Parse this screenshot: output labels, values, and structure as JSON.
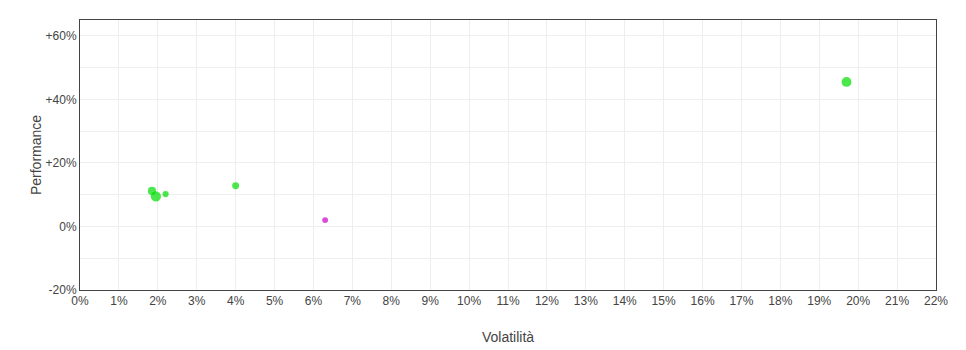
{
  "chart_data": {
    "type": "scatter",
    "xlabel": "Volatilità",
    "ylabel": "Performance",
    "x": [
      0.0195,
      0.0185,
      0.022,
      0.04,
      0.063,
      0.197
    ],
    "values": [
      0.095,
      0.112,
      0.102,
      0.128,
      0.02,
      0.455
    ],
    "sizes": [
      55,
      35,
      20,
      25,
      18,
      50
    ],
    "colors": [
      "#00dd00",
      "#00dd00",
      "#00dd00",
      "#00dd00",
      "#cc00cc",
      "#00dd00"
    ],
    "xlim": [
      0.0,
      0.22
    ],
    "ylim": [
      -0.2,
      0.65
    ],
    "xticks": [
      {
        "value": 0.0,
        "label": "0%"
      },
      {
        "value": 0.01,
        "label": "1%"
      },
      {
        "value": 0.02,
        "label": "2%"
      },
      {
        "value": 0.03,
        "label": "3%"
      },
      {
        "value": 0.04,
        "label": "4%"
      },
      {
        "value": 0.05,
        "label": "5%"
      },
      {
        "value": 0.06,
        "label": "6%"
      },
      {
        "value": 0.07,
        "label": "7%"
      },
      {
        "value": 0.08,
        "label": "8%"
      },
      {
        "value": 0.09,
        "label": "9%"
      },
      {
        "value": 0.1,
        "label": "10%"
      },
      {
        "value": 0.11,
        "label": "11%"
      },
      {
        "value": 0.12,
        "label": "12%"
      },
      {
        "value": 0.13,
        "label": "13%"
      },
      {
        "value": 0.14,
        "label": "14%"
      },
      {
        "value": 0.15,
        "label": "15%"
      },
      {
        "value": 0.16,
        "label": "16%"
      },
      {
        "value": 0.17,
        "label": "17%"
      },
      {
        "value": 0.18,
        "label": "18%"
      },
      {
        "value": 0.19,
        "label": "19%"
      },
      {
        "value": 0.2,
        "label": "20%"
      },
      {
        "value": 0.21,
        "label": "21%"
      },
      {
        "value": 0.22,
        "label": "22%"
      }
    ],
    "yticks": [
      {
        "value": -0.2,
        "label": "-20%"
      },
      {
        "value": -0.1,
        "label": null
      },
      {
        "value": 0.0,
        "label": "0%"
      },
      {
        "value": 0.1,
        "label": null
      },
      {
        "value": 0.2,
        "label": "+20%"
      },
      {
        "value": 0.3,
        "label": null
      },
      {
        "value": 0.4,
        "label": "+40%"
      },
      {
        "value": 0.5,
        "label": null
      },
      {
        "value": 0.6,
        "label": "+60%"
      }
    ],
    "grid": true
  }
}
